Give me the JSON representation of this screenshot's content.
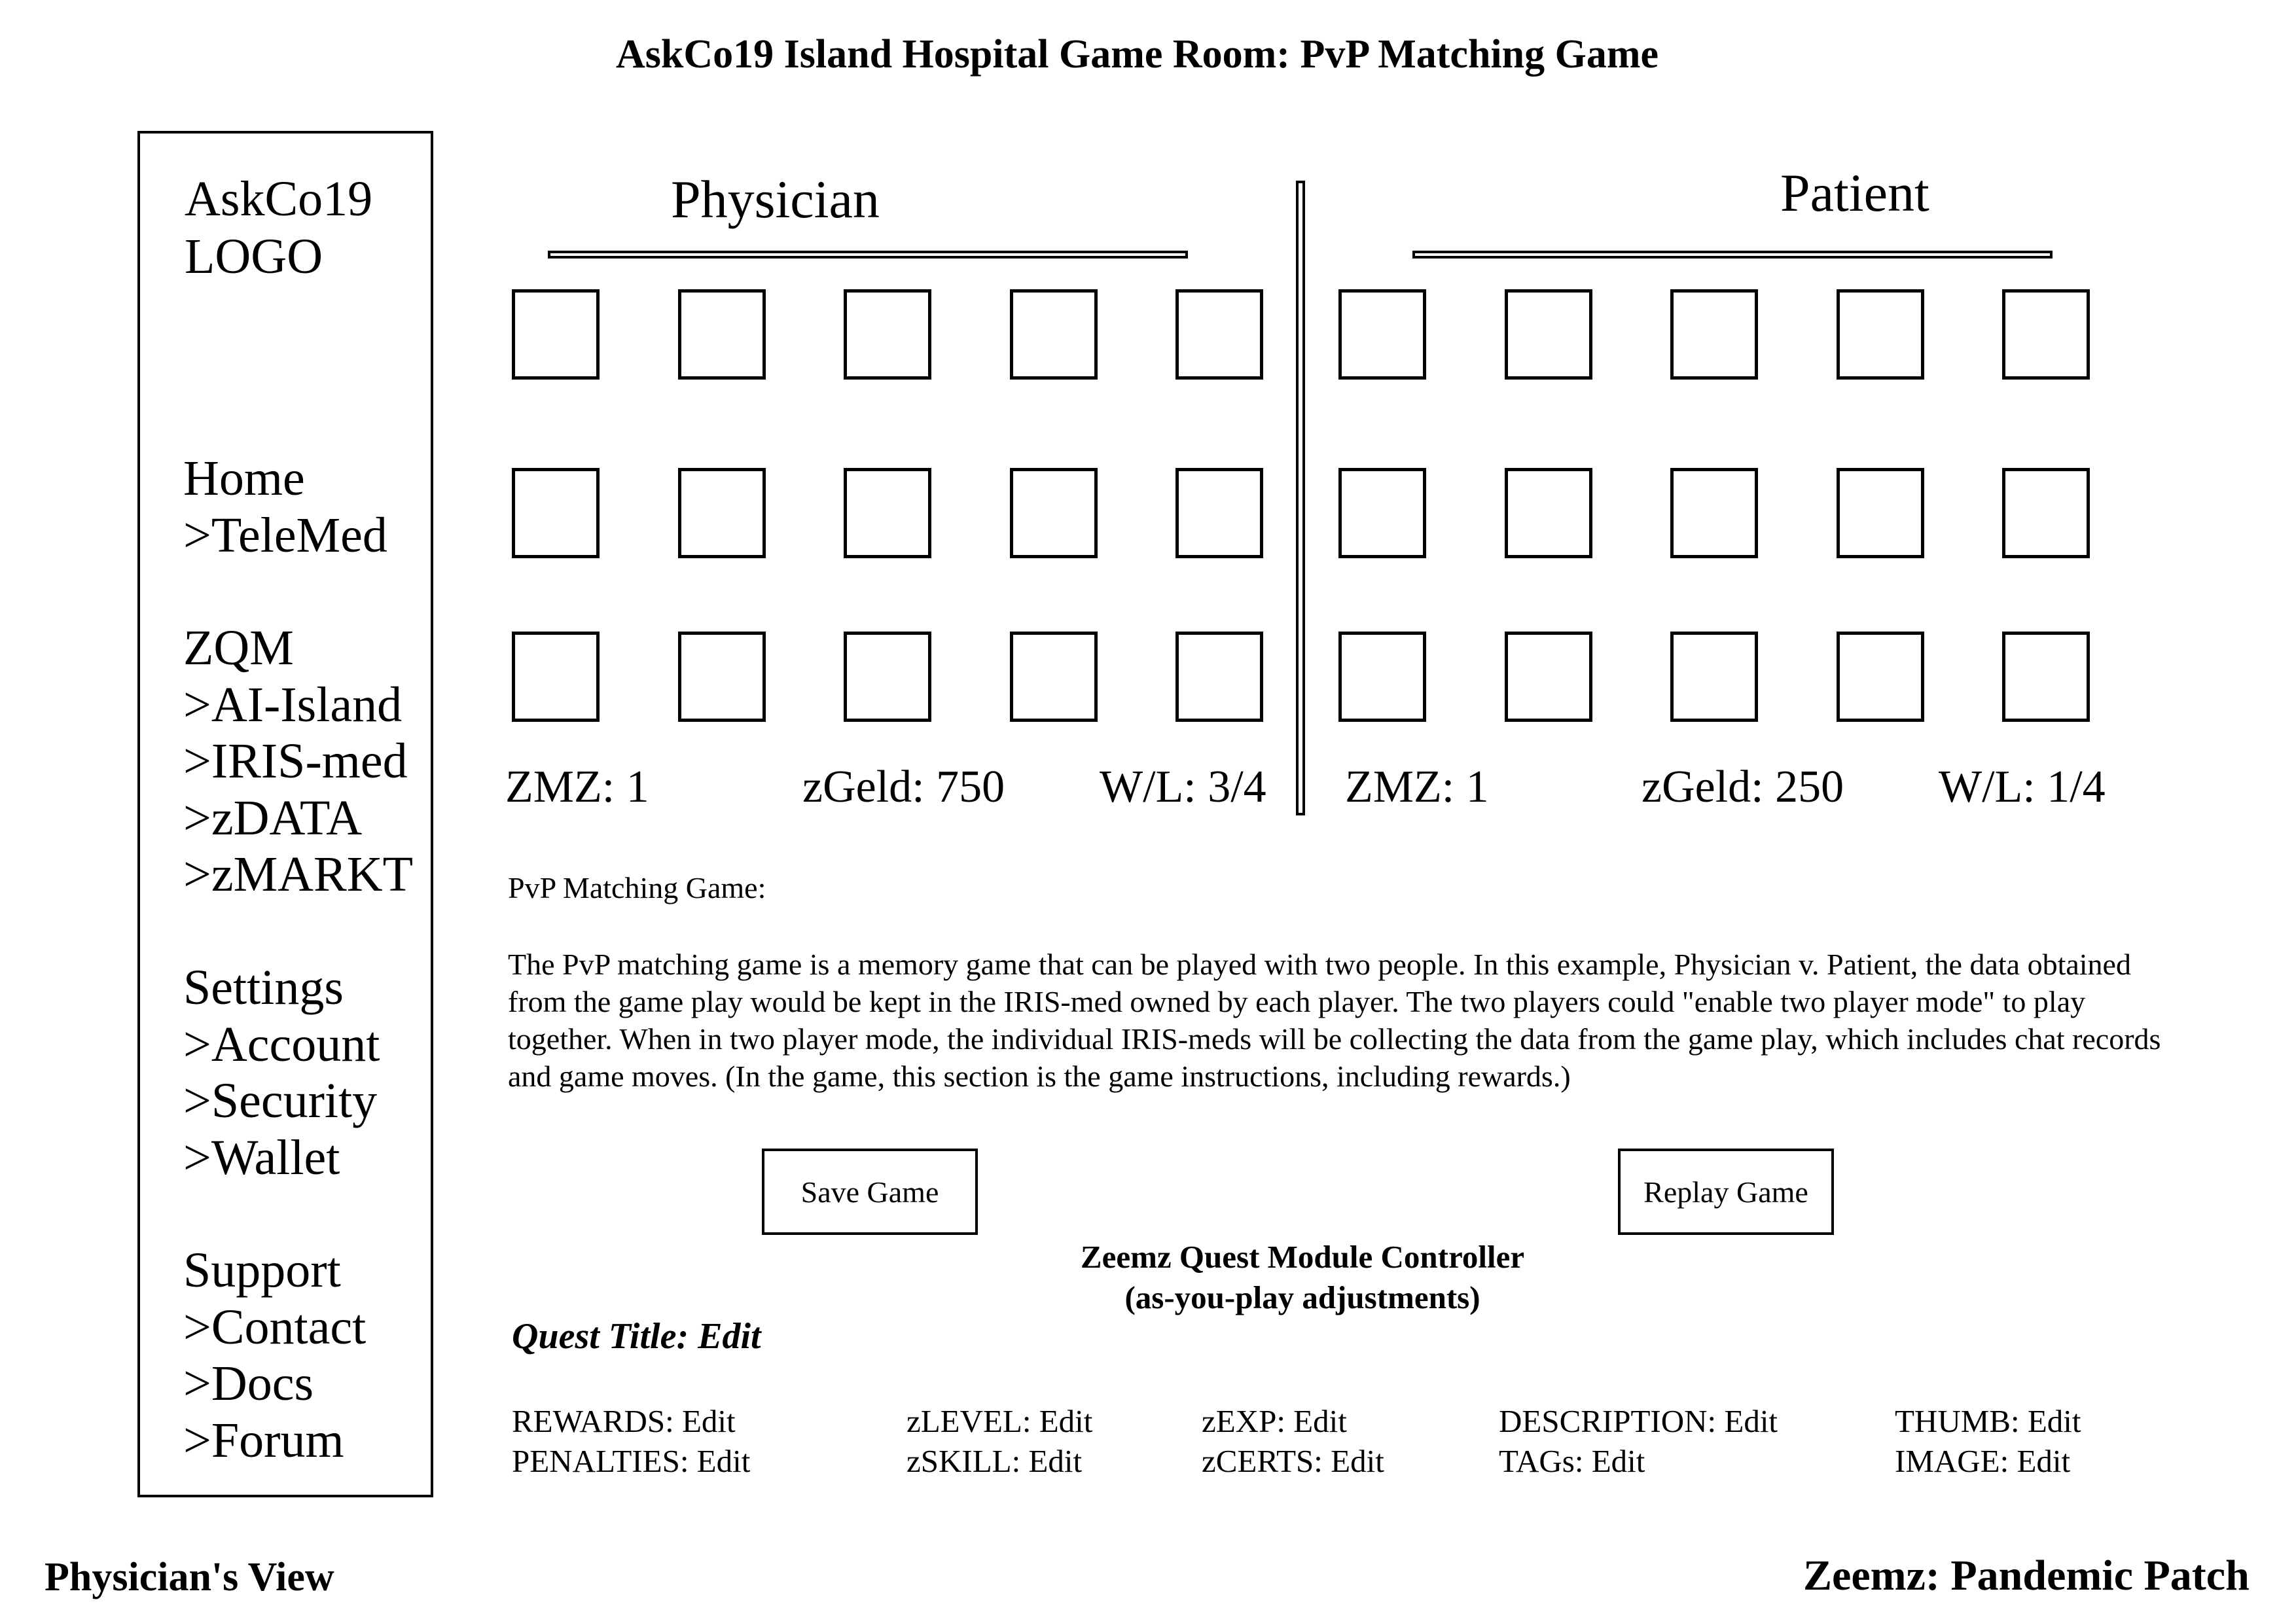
{
  "page_title": "AskCo19 Island Hospital Game Room: PvP Matching Game",
  "sidebar": {
    "logo_line1": "AskCo19",
    "logo_line2": "LOGO",
    "groups": [
      {
        "items": [
          "Home",
          ">TeleMed"
        ]
      },
      {
        "items": [
          "ZQM",
          ">AI-Island",
          ">IRIS-med",
          ">zDATA",
          ">zMARKT"
        ]
      },
      {
        "items": [
          "Settings",
          ">Account",
          ">Security",
          ">Wallet"
        ]
      },
      {
        "items": [
          "Support",
          ">Contact",
          ">Docs",
          ">Forum"
        ]
      }
    ]
  },
  "physician": {
    "title": "Physician",
    "zmz": "ZMZ: 1",
    "zgeld": "zGeld: 750",
    "wl": "W/L: 3/4"
  },
  "patient": {
    "title": "Patient",
    "zmz": "ZMZ: 1",
    "zgeld": "zGeld: 250",
    "wl": "W/L: 1/4"
  },
  "description": {
    "heading": "PvP Matching Game:",
    "body": "The PvP matching game is a memory game that can be played with two people. In this example, Physician v. Patient, the data obtained from the game play would be kept in the IRIS-med owned by each player. The two players could \"enable two player mode\" to play together. When in two player mode, the individual IRIS-meds will be collecting the data from the game play, which includes chat records and game moves. (In the game, this section is the game instructions, including rewards.)"
  },
  "buttons": {
    "save": "Save Game",
    "replay": "Replay Game"
  },
  "controller": {
    "title_line1": "Zeemz Quest Module Controller",
    "title_line2": "(as-you-play adjustments)",
    "quest_title": "Quest Title: Edit",
    "fields": {
      "rewards": "REWARDS:  Edit",
      "penalties": "PENALTIES: Edit",
      "zlevel": "zLEVEL: Edit",
      "zskill": "zSKILL: Edit",
      "zexp": "zEXP: Edit",
      "zcerts": "zCERTS: Edit",
      "description": "DESCRIPTION: Edit",
      "tags": "TAGs: Edit",
      "thumb": "THUMB: Edit",
      "image": "IMAGE: Edit"
    }
  },
  "footer": {
    "left": "Physician's View",
    "right": "Zeemz: Pandemic Patch"
  }
}
